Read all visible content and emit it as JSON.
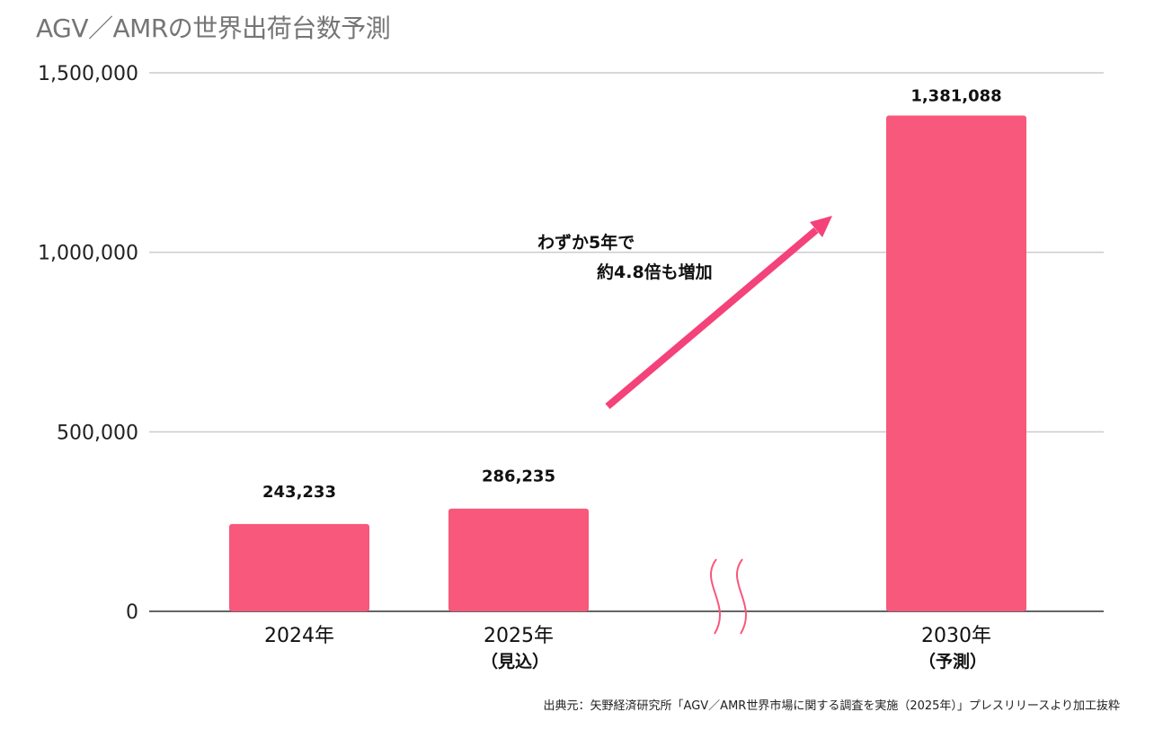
{
  "chart_data": {
    "type": "bar",
    "title": "AGV／AMRの世界出荷台数予測",
    "categories": [
      "2024年",
      "2025年",
      "2030年"
    ],
    "category_notes": [
      "",
      "（見込）",
      "（予測）"
    ],
    "values": [
      243233,
      286235,
      1381088
    ],
    "value_labels": [
      "243,233",
      "286,235",
      "1,381,088"
    ],
    "ylim": [
      0,
      1500000
    ],
    "yticks": [
      0,
      500000,
      1000000,
      1500000
    ],
    "ytick_labels": [
      "0",
      "500,000",
      "1,000,000",
      "1,500,000"
    ],
    "xlabel": "",
    "ylabel": "",
    "grid": true,
    "axis_break_between": [
      "2025年",
      "2030年"
    ],
    "annotation": {
      "line1": "わずか5年で",
      "line2": "約4.8倍も増加"
    },
    "colors": {
      "bar": "#F7587B",
      "arrow": "#F4427A",
      "grid": "#cccccc",
      "axis": "#333333",
      "title": "#757575"
    }
  },
  "source": "出典元：矢野経済研究所「AGV／AMR世界市場に関する調査を実施（2025年）」プレスリリースより加工抜粋"
}
